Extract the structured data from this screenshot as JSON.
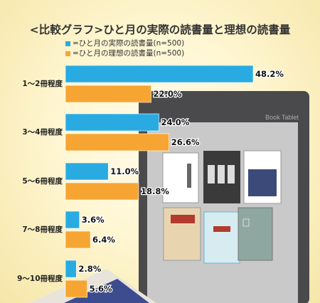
{
  "title": "<比較グラフ>ひと月の実際の読書量と理想の読書量",
  "colors": {
    "actual": "#29abe2",
    "ideal": "#f7a532"
  },
  "tablet_label": "Book Tablet",
  "chart_data": {
    "type": "bar",
    "orientation": "horizontal",
    "categories": [
      "1～2冊程度",
      "3～4冊程度",
      "5～6冊程度",
      "7～8冊程度",
      "9～10冊程度"
    ],
    "series": [
      {
        "name": "=ひと月の実際の読書量(n=500)",
        "values": [
          48.2,
          24.0,
          11.0,
          3.6,
          2.8
        ],
        "labels": [
          "48.2%",
          "24.0%",
          "11.0%",
          "3.6%",
          "2.8%"
        ]
      },
      {
        "name": "=ひと月の理想の読書量(n=500)",
        "values": [
          22.0,
          26.6,
          18.8,
          6.4,
          5.6
        ],
        "labels": [
          "22.0%",
          "26.6%",
          "18.8%",
          "6.4%",
          "5.6%"
        ]
      }
    ],
    "xlim": [
      0,
      50
    ],
    "legend": "top-left"
  }
}
